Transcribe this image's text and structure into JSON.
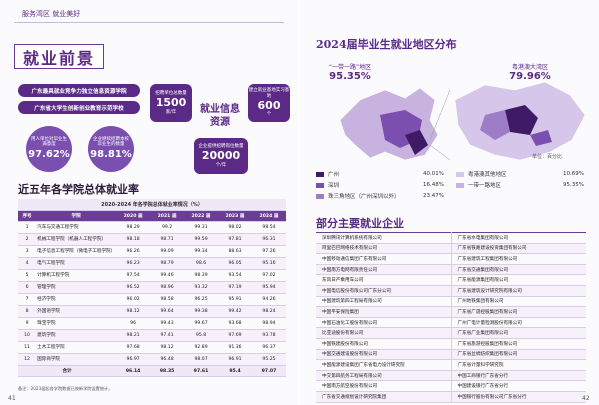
{
  "left_page": {
    "header_tab": "服务湾区  就业美好",
    "title": "就业前景",
    "badges": [
      "广东最具就业竞争力独立信息资源学院",
      "广东省大学生创新创业教育示范学校"
    ],
    "stats": [
      {
        "label": "用人单位对毕业生满意度",
        "value": "97.62%"
      },
      {
        "label": "企业继续招聘本校毕业生的数量",
        "value": "98.81%"
      }
    ],
    "resource_center": "就业信息资源",
    "resources": [
      {
        "label": "招聘单位总数量",
        "value": "1500",
        "unit": "家/年"
      },
      {
        "label": "建立就业基地实习基地",
        "value": "600",
        "unit": "个"
      },
      {
        "label": "企业提供招聘岗位数量",
        "value": "20000",
        "unit": "个/年"
      }
    ],
    "section_title": "近五年各学院总体就业率",
    "table": {
      "caption": "2020-2024 年各学院总体就业率情况（%）",
      "header": [
        "序号",
        "学院",
        "2020 届",
        "2021 届",
        "2022 届",
        "2023 届",
        "2024 届"
      ],
      "rows": [
        [
          1,
          "汽车与交通工程学院",
          98.29,
          99.2,
          99.31,
          98.02,
          98.54
        ],
        [
          2,
          "机械工程学院（机器人工程学院）",
          98.18,
          98.71,
          99.59,
          97.81,
          96.31
        ],
        [
          3,
          "电子信息工程学院（微电子工程学院）",
          96.26,
          99.09,
          99.34,
          88.63,
          97.26
        ],
        [
          4,
          "电气工程学院",
          96.23,
          98.79,
          98.6,
          96.05,
          95.16
        ],
        [
          5,
          "计算机工程学院",
          97.54,
          99.46,
          98.39,
          93.54,
          97.02
        ],
        [
          6,
          "管理学院",
          96.52,
          98.96,
          93.32,
          97.19,
          95.94
        ],
        [
          7,
          "经济学院",
          96.02,
          98.58,
          96.25,
          95.91,
          94.26
        ],
        [
          8,
          "外国语学院",
          98.12,
          99.64,
          99.38,
          99.42,
          98.24
        ],
        [
          9,
          "珠宝学院",
          96,
          99.43,
          99.67,
          93.68,
          98.94
        ],
        [
          10,
          "建筑学院",
          98.21,
          97.41,
          95.8,
          97.69,
          93.78
        ],
        [
          11,
          "土木工程学院",
          97.68,
          98.12,
          92.89,
          91.36,
          96.37
        ],
        [
          12,
          "国际商学院",
          96.97,
          96.48,
          98.07,
          96.91,
          95.25
        ]
      ],
      "total": {
        "label": "合计",
        "values": [
          96.14,
          98.35,
          97.61,
          95.4,
          97.07
        ]
      }
    },
    "note": "备注：2023届起各学院数据已按新学院设置统计。",
    "page_number": "41"
  },
  "right_page": {
    "title": "2024届毕业生就业地区分布",
    "highlights": [
      {
        "label": "“一带一路”地区",
        "value": "95.35%"
      },
      {
        "label": "粤港澳大湾区",
        "value": "79.96%"
      }
    ],
    "map_unit": "单位：百分比",
    "legend": [
      {
        "label": "广州",
        "value": "40.01%"
      },
      {
        "label": "粤港澳其他地区",
        "value": "10.69%"
      },
      {
        "label": "深圳",
        "value": "16.48%"
      },
      {
        "label": "一带一路地区",
        "value": "95.35%"
      },
      {
        "label": "珠三角地区（广州深圳以外）",
        "value": "23.47%"
      }
    ],
    "companies_title": "部分主要就业企业",
    "companies": [
      [
        "深圳腾讯计算机系统有限公司",
        "广东省水电集团有限公司"
      ],
      [
        "阿里巴巴网络技术有限公司",
        "广东省铁路建设投资集团有限公司"
      ],
      [
        "中国移动通信集团广东有限公司",
        "广东省建筑工程集团有限公司"
      ],
      [
        "中国南方电网有限责任公司",
        "广东省交通集团有限公司"
      ],
      [
        "东风日产乘用车公司",
        "广东省能源集团有限公司"
      ],
      [
        "中国电信股份有限公司广东分公司",
        "广东省建筑设计研究院有限公司"
      ],
      [
        "中国建筑第四工程局有限公司",
        "广州地铁集团有限公司"
      ],
      [
        "中国平安保险集团",
        "广东省广晟控股集团有限公司"
      ],
      [
        "中国石油化工股份有限公司",
        "广州广电计量检测股份有限公司"
      ],
      [
        "比亚迪股份有限公司",
        "广东省广业集团有限公司"
      ],
      [
        "中国铁建股份有限公司",
        "广东省旅游控股集团有限公司"
      ],
      [
        "中国交通建设股份有限公司",
        "广东省丝绸纺织集团有限公司"
      ],
      [
        "中国能源建设集团广东省电力设计研究院",
        "广东省计量科学研究院"
      ],
      [
        "中交第四航务工程局有限公司",
        "中国工商银行广东省分行"
      ],
      [
        "中国南方航空股份有限公司",
        "中国建设银行广东省分行"
      ],
      [
        "广东省交通规划设计研究院集团",
        "中国银行股份有限公司广东省分行"
      ]
    ],
    "page_number": "42"
  }
}
